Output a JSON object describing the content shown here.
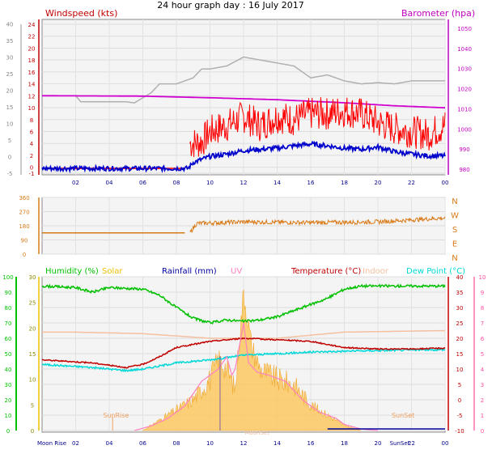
{
  "header": {
    "title": "24 hour graph day : 16 July 2017"
  },
  "colors": {
    "windspeed": "#d40000",
    "wind_gust": "#ff0000",
    "wind_avg": "#0000cc",
    "barometer": "#d000d0",
    "grey_trace": "#b0b0b0",
    "direction": "#d87a18",
    "humidity": "#00c000",
    "solar": "#f0c000",
    "rainfall": "#0000a0",
    "uv": "#ff80c0",
    "temperature": "#c00000",
    "indoor": "#f4c0a0",
    "dewpoint": "#00d8d8"
  },
  "chart_data": [
    {
      "type": "line",
      "panel": "wind-barometer",
      "left_axis_label": "Windspeed (kts)",
      "right_axis_label": "Barometer (hpa)",
      "x_ticks": [
        "02",
        "04",
        "06",
        "08",
        "10",
        "12",
        "14",
        "16",
        "18",
        "20",
        "22",
        "00"
      ],
      "left_outer_ticks": [
        "-5",
        "0",
        "5",
        "10",
        "15",
        "20",
        "25",
        "30",
        "35",
        "40"
      ],
      "left_inner_ticks": [
        "-1",
        "0",
        "2",
        "4",
        "6",
        "8",
        "10",
        "12",
        "14",
        "16",
        "18",
        "20",
        "22",
        "24"
      ],
      "right_ticks": [
        "980",
        "990",
        "1000",
        "1010",
        "1020",
        "1030",
        "1040",
        "1050"
      ],
      "left_inner_range": [
        -1,
        24
      ],
      "right_range": [
        978,
        1052
      ],
      "x_range_hours": [
        0,
        24
      ],
      "series": [
        {
          "key": "gust",
          "points": [
            [
              0,
              -0.2
            ],
            [
              8.7,
              -0.2
            ],
            [
              8.8,
              4
            ],
            [
              9.5,
              4.2
            ],
            [
              10,
              6
            ],
            [
              11,
              7
            ],
            [
              12,
              8.5
            ],
            [
              13,
              7
            ],
            [
              14,
              8.5
            ],
            [
              15,
              8
            ],
            [
              16,
              9
            ],
            [
              17,
              9
            ],
            [
              18,
              9.5
            ],
            [
              19,
              9
            ],
            [
              20,
              7.5
            ],
            [
              21,
              6.5
            ],
            [
              22,
              6
            ],
            [
              23,
              5.5
            ],
            [
              24,
              7
            ]
          ],
          "amplitude": 2.8
        },
        {
          "key": "avg",
          "points": [
            [
              0,
              -0.2
            ],
            [
              8.7,
              -0.2
            ],
            [
              9,
              0.8
            ],
            [
              10,
              1.8
            ],
            [
              11,
              2.2
            ],
            [
              12,
              2.8
            ],
            [
              13,
              3
            ],
            [
              14,
              3.2
            ],
            [
              15,
              3.6
            ],
            [
              16,
              3.9
            ],
            [
              17,
              3.6
            ],
            [
              18,
              3.2
            ],
            [
              19,
              3.0
            ],
            [
              20,
              3.4
            ],
            [
              21,
              2.6
            ],
            [
              22,
              2.2
            ],
            [
              23,
              1.9
            ],
            [
              24,
              1.9
            ]
          ],
          "amplitude": 0.4
        },
        {
          "key": "barometer",
          "points": [
            [
              0,
              1016.5
            ],
            [
              6,
              1016.3
            ],
            [
              10,
              1015.5
            ],
            [
              14,
              1014.5
            ],
            [
              18,
              1013
            ],
            [
              21,
              1011.5
            ],
            [
              24,
              1010.5
            ]
          ],
          "amplitude": 0
        },
        {
          "key": "grey",
          "points": [
            [
              0,
              12
            ],
            [
              2,
              12
            ],
            [
              2.3,
              11
            ],
            [
              5,
              11
            ],
            [
              5.5,
              10.8
            ],
            [
              6.5,
              12.5
            ],
            [
              7,
              14
            ],
            [
              8,
              14
            ],
            [
              9,
              15
            ],
            [
              9.5,
              16.5
            ],
            [
              10,
              16.5
            ],
            [
              11,
              17
            ],
            [
              12,
              18.5
            ],
            [
              13,
              18
            ],
            [
              14,
              17.5
            ],
            [
              15,
              17
            ],
            [
              16,
              15
            ],
            [
              17,
              15.5
            ],
            [
              18,
              14.5
            ],
            [
              19,
              14
            ],
            [
              20,
              14.2
            ],
            [
              21,
              14
            ],
            [
              22,
              14.5
            ],
            [
              24,
              14.5
            ]
          ],
          "amplitude": 0.3
        }
      ]
    },
    {
      "type": "line",
      "panel": "direction",
      "y_ticks": [
        "0",
        "90",
        "180",
        "270",
        "360"
      ],
      "direction_labels": [
        "N",
        "W",
        "S",
        "E",
        "N"
      ],
      "y_range": [
        0,
        360
      ],
      "series": [
        {
          "key": "direction",
          "points": [
            [
              0,
              135
            ],
            [
              8.8,
              135
            ],
            [
              9.2,
              195
            ],
            [
              12,
              205
            ],
            [
              16,
              200
            ],
            [
              20,
              205
            ],
            [
              24,
              230
            ]
          ],
          "amplitude": 14
        }
      ]
    },
    {
      "type": "line",
      "panel": "humidity-temperature",
      "legend": [
        "Humidity (%)",
        "Solar",
        "Rainfall (mm)",
        "UV",
        "Temperature (°C)",
        "Indoor",
        "Dew Point (°C)"
      ],
      "left_outer_ticks": [
        "0",
        "10",
        "20",
        "30",
        "40",
        "50",
        "60",
        "70",
        "80",
        "90",
        "100"
      ],
      "left_inner_ticks": [
        "0",
        "5",
        "10",
        "15",
        "20",
        "25",
        "30"
      ],
      "right_inner_ticks": [
        "-10",
        "-5",
        "0",
        "5",
        "10",
        "15",
        "20",
        "25",
        "30",
        "35",
        "40"
      ],
      "right_outer_ticks": [
        "0",
        "1",
        "2",
        "3",
        "4",
        "5",
        "6",
        "7",
        "8",
        "9",
        "10"
      ],
      "temp_range": [
        -10,
        40
      ],
      "humidity_range": [
        0,
        100
      ],
      "annotations": {
        "moonrise": "Moon Rise",
        "sunrise": "SunRise",
        "sunset": "SunSet",
        "sunset_axis": "SunSet",
        "moonset": "MoonSet"
      },
      "series": [
        {
          "key": "humidity",
          "points": [
            [
              0,
              94
            ],
            [
              2,
              93
            ],
            [
              3,
              90
            ],
            [
              4,
              93
            ],
            [
              6,
              92
            ],
            [
              7,
              88
            ],
            [
              8,
              80
            ],
            [
              9,
              73
            ],
            [
              10,
              70
            ],
            [
              11,
              72
            ],
            [
              12,
              71
            ],
            [
              13,
              72
            ],
            [
              14,
              74
            ],
            [
              15,
              78
            ],
            [
              16,
              82
            ],
            [
              17,
              86
            ],
            [
              18,
              92
            ],
            [
              19,
              94
            ],
            [
              20,
              94
            ],
            [
              22,
              94
            ],
            [
              24,
              94
            ]
          ],
          "amplitude": 0.8
        },
        {
          "key": "indoor",
          "points": [
            [
              0,
              22
            ],
            [
              2,
              22
            ],
            [
              6,
              21.5
            ],
            [
              10,
              20
            ],
            [
              14,
              20
            ],
            [
              18,
              22
            ],
            [
              24,
              22.5
            ]
          ],
          "amplitude": 0
        },
        {
          "key": "temperature",
          "points": [
            [
              0,
              13
            ],
            [
              3,
              12
            ],
            [
              5,
              10.5
            ],
            [
              6,
              11.5
            ],
            [
              7,
              14
            ],
            [
              8,
              17
            ],
            [
              10,
              19
            ],
            [
              12,
              20
            ],
            [
              14,
              19.5
            ],
            [
              16,
              19
            ],
            [
              18,
              17
            ],
            [
              20,
              16.5
            ],
            [
              22,
              16.5
            ],
            [
              24,
              16.8
            ]
          ],
          "amplitude": 0.2
        },
        {
          "key": "dewpoint",
          "points": [
            [
              0,
              11.5
            ],
            [
              3,
              10.5
            ],
            [
              5,
              9.5
            ],
            [
              6,
              10
            ],
            [
              8,
              12
            ],
            [
              10,
              13
            ],
            [
              12,
              14.5
            ],
            [
              14,
              15
            ],
            [
              16,
              15.5
            ],
            [
              18,
              15.8
            ],
            [
              20,
              16
            ],
            [
              22,
              16.2
            ],
            [
              24,
              16.3
            ]
          ],
          "amplitude": 0.3
        },
        {
          "key": "uv",
          "points": [
            [
              5.5,
              -10
            ],
            [
              6.5,
              -8.5
            ],
            [
              7.5,
              -6
            ],
            [
              8.5,
              -2
            ],
            [
              9.5,
              6
            ],
            [
              10.5,
              10
            ],
            [
              11,
              14
            ],
            [
              11.3,
              8
            ],
            [
              11.5,
              10
            ],
            [
              12,
              25
            ],
            [
              12.3,
              12
            ],
            [
              12.8,
              9
            ],
            [
              13.5,
              8
            ],
            [
              14.5,
              6
            ],
            [
              15.5,
              0
            ],
            [
              16.5,
              -4
            ],
            [
              17.5,
              -6
            ],
            [
              18,
              -8
            ],
            [
              19,
              -9.5
            ],
            [
              20,
              -10
            ]
          ],
          "amplitude": 0
        },
        {
          "key": "solar",
          "points": [
            [
              6,
              0
            ],
            [
              7,
              2
            ],
            [
              8,
              4
            ],
            [
              9,
              6
            ],
            [
              9.5,
              8
            ],
            [
              10,
              10
            ],
            [
              10.5,
              14
            ],
            [
              11,
              12
            ],
            [
              11.5,
              8
            ],
            [
              12,
              27
            ],
            [
              12.5,
              16
            ],
            [
              13,
              12
            ],
            [
              13.5,
              11
            ],
            [
              14,
              10
            ],
            [
              15,
              9
            ],
            [
              15.5,
              7
            ],
            [
              16,
              5
            ],
            [
              17,
              3
            ],
            [
              18,
              1
            ],
            [
              19,
              0
            ]
          ],
          "amplitude": 0
        }
      ]
    }
  ]
}
